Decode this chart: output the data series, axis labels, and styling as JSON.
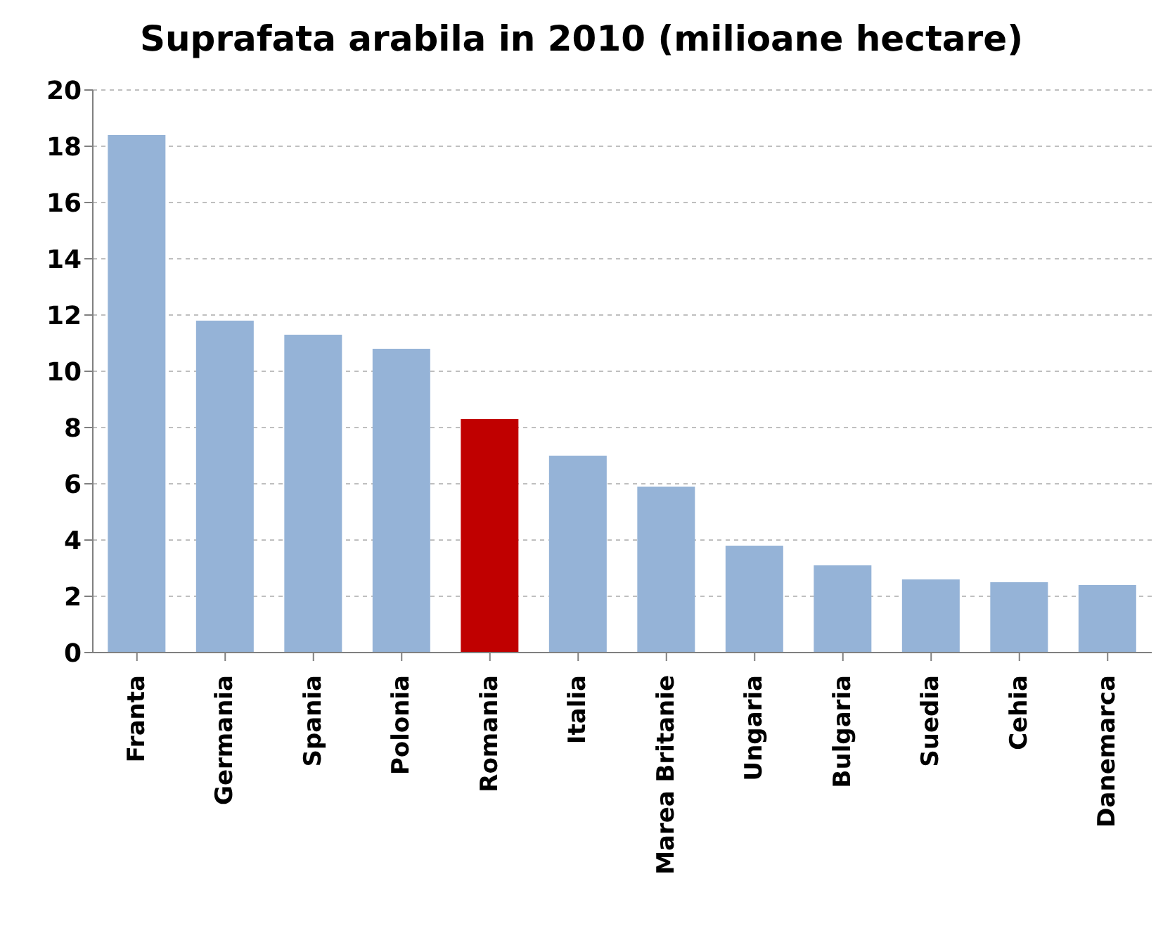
{
  "chart_data": {
    "type": "bar",
    "title": "Suprafata arabila in 2010 (milioane hectare)",
    "categories": [
      "Franta",
      "Germania",
      "Spania",
      "Polonia",
      "Romania",
      "Italia",
      "Marea Britanie",
      "Ungaria",
      "Bulgaria",
      "Suedia",
      "Cehia",
      "Danemarca"
    ],
    "values": [
      18.4,
      11.8,
      11.3,
      10.8,
      8.3,
      7.0,
      5.9,
      3.8,
      3.1,
      2.6,
      2.5,
      2.4
    ],
    "colors": [
      "#95b3d7",
      "#95b3d7",
      "#95b3d7",
      "#95b3d7",
      "#c00000",
      "#95b3d7",
      "#95b3d7",
      "#95b3d7",
      "#95b3d7",
      "#95b3d7",
      "#95b3d7",
      "#95b3d7"
    ],
    "ylim": [
      0,
      20
    ],
    "yticks": [
      0,
      2,
      4,
      6,
      8,
      10,
      12,
      14,
      16,
      18,
      20
    ],
    "grid": "y"
  }
}
